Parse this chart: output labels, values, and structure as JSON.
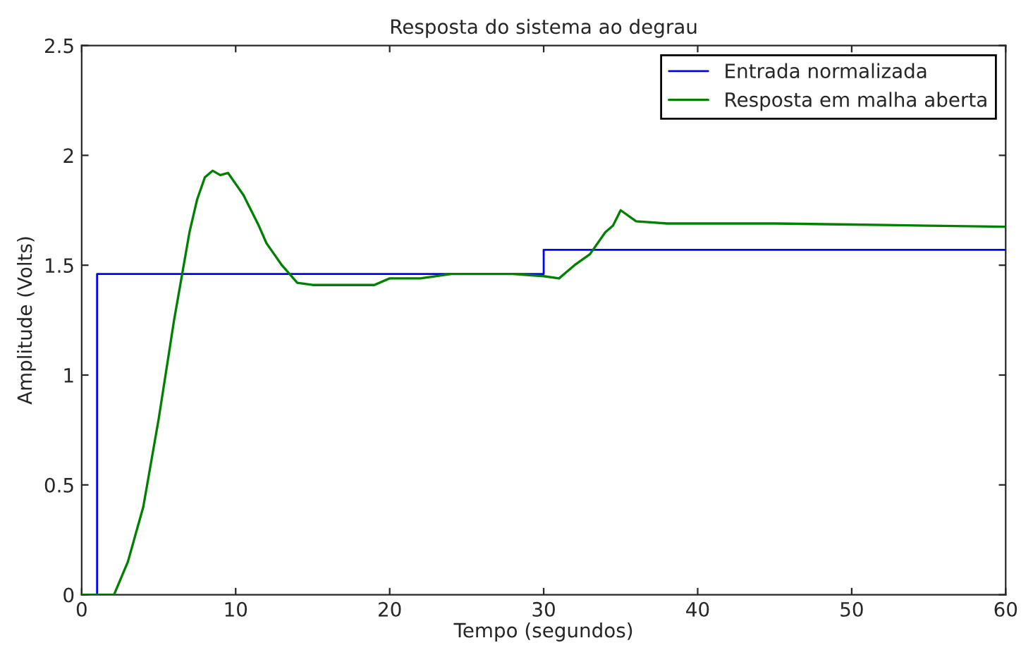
{
  "chart_data": {
    "type": "line",
    "title": "Resposta do sistema ao degrau",
    "xlabel": "Tempo (segundos)",
    "ylabel": "Amplitude (Volts)",
    "xlim": [
      0,
      60
    ],
    "ylim": [
      0,
      2.5
    ],
    "xticks": [
      0,
      10,
      20,
      30,
      40,
      50,
      60
    ],
    "yticks": [
      0,
      0.5,
      1,
      1.5,
      2,
      2.5
    ],
    "grid": false,
    "legend": "top right",
    "series": [
      {
        "name": "Entrada normalizada",
        "type": "step",
        "color": "#0000ff",
        "x": [
          0,
          1,
          30,
          60
        ],
        "values": [
          0,
          1.46,
          1.57,
          1.57
        ]
      },
      {
        "name": "Resposta em malha aberta",
        "color": "#008000",
        "x": [
          0,
          2.1,
          3,
          4,
          5,
          6,
          6.5,
          7,
          7.5,
          8,
          8.5,
          9,
          9.5,
          10,
          10.5,
          11,
          11.5,
          12,
          12.5,
          13,
          13.5,
          14,
          15,
          17,
          19,
          20,
          22,
          24,
          26,
          28,
          30,
          31,
          31.5,
          32,
          33,
          34,
          34.5,
          35,
          36,
          38,
          40,
          45,
          50,
          55,
          60
        ],
        "values": [
          0,
          0,
          0.15,
          0.4,
          0.8,
          1.25,
          1.45,
          1.65,
          1.8,
          1.9,
          1.93,
          1.91,
          1.92,
          1.87,
          1.82,
          1.75,
          1.68,
          1.6,
          1.55,
          1.5,
          1.46,
          1.42,
          1.41,
          1.41,
          1.41,
          1.44,
          1.44,
          1.46,
          1.46,
          1.46,
          1.45,
          1.44,
          1.47,
          1.5,
          1.55,
          1.65,
          1.68,
          1.75,
          1.7,
          1.69,
          1.69,
          1.69,
          1.685,
          1.68,
          1.675
        ]
      }
    ]
  }
}
